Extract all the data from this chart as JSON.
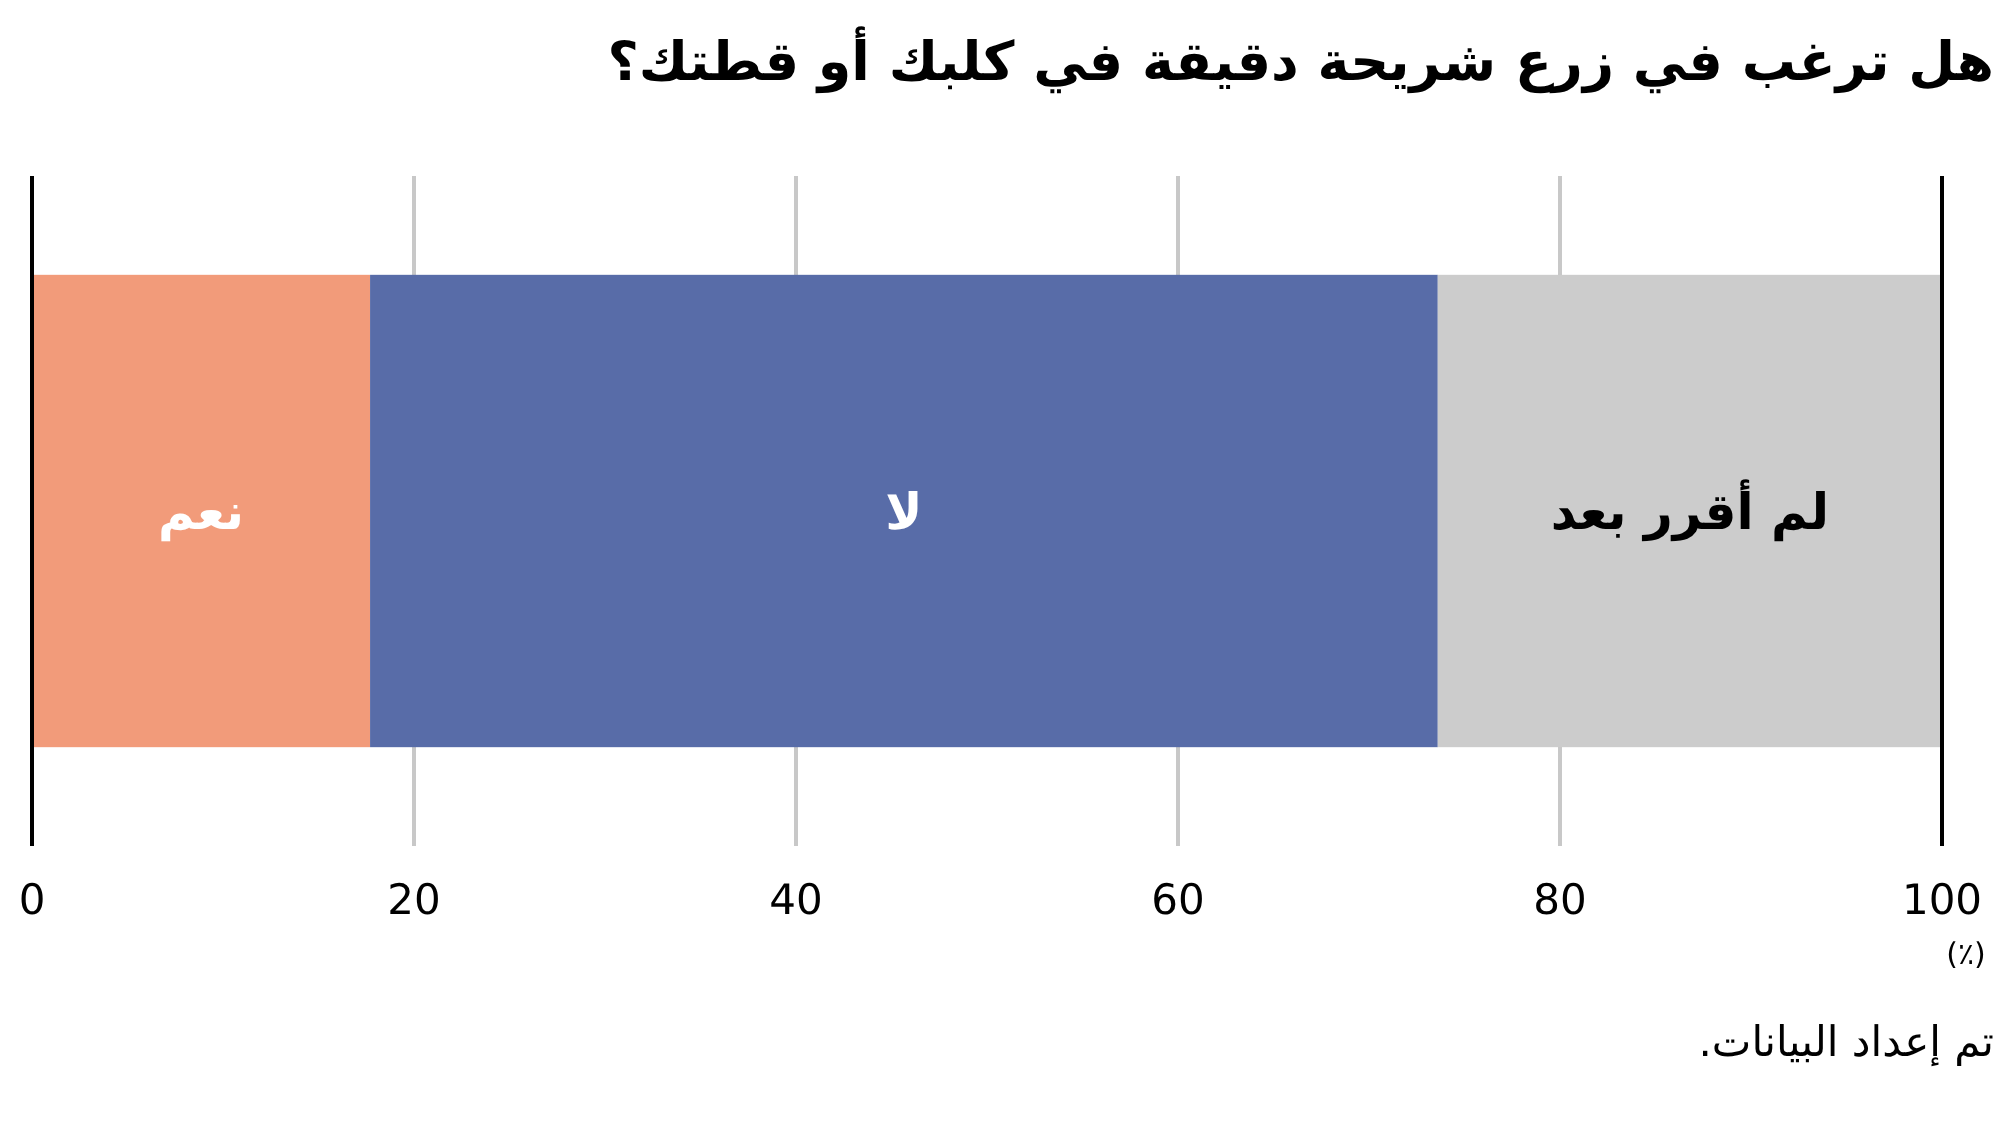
{
  "chart_data": {
    "type": "bar",
    "orientation": "horizontal",
    "stacked": true,
    "title": "هل ترغب في زرع شريحة دقيقة في كلبك أو قطتك؟",
    "xlabel": "(٪)",
    "categories": [
      null
    ],
    "series": [
      {
        "name": "نعم",
        "color": "#f29b7a",
        "values": [
          17.7
        ]
      },
      {
        "name": "لا",
        "color": "#586ca8",
        "values": [
          55.9
        ]
      },
      {
        "name": "لم أقرر بعد",
        "color": "#cccccc",
        "values": [
          26.4
        ]
      }
    ],
    "xlim": [
      0,
      100
    ],
    "xticks": [
      0,
      20,
      40,
      60,
      80,
      100
    ],
    "grid": "x",
    "annotations": [
      "تم إعداد البيانات."
    ]
  }
}
